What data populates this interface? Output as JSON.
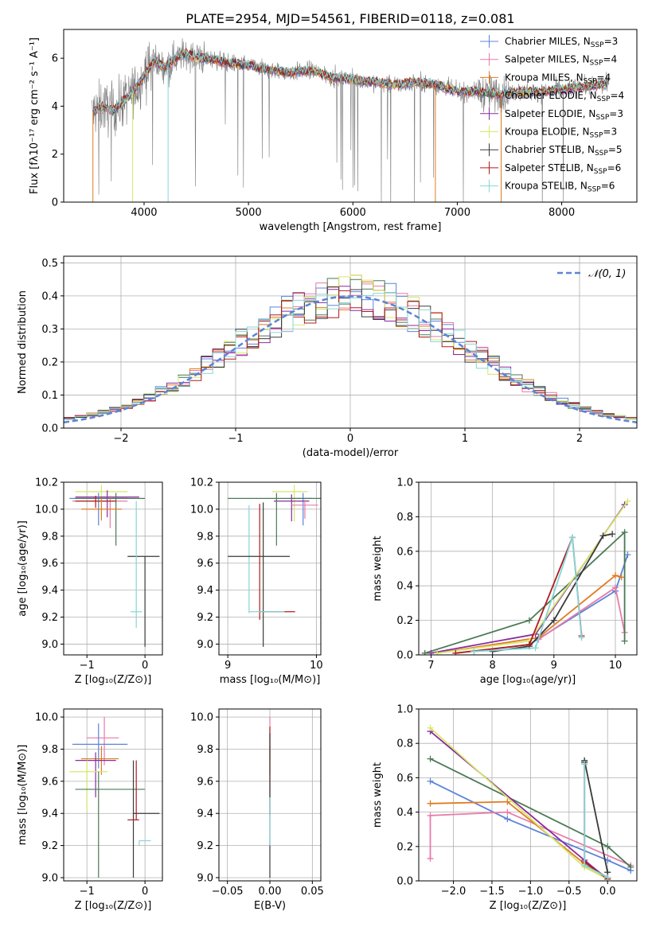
{
  "figure_title": "PLATE=2954, MJD=54561, FIBERID=0118, z=0.081",
  "colors": {
    "Chabrier MILES": "#5b84d8",
    "Salpeter MILES": "#e87aa8",
    "Kroupa MILES": "#e07b22",
    "Chabrier ELODIE": "#4a7a55",
    "Salpeter ELODIE": "#8a2aa0",
    "Kroupa ELODIE": "#d6e86a",
    "Chabrier STELIB": "#3a3a3a",
    "Salpeter STELIB": "#b01c1c",
    "Kroupa STELIB": "#86d6d8",
    "data": "#7a7a7a",
    "normal": "#5b84d8"
  },
  "chart_data": [
    {
      "type": "line",
      "id": "spectrum",
      "xlabel": "wavelength [Angstrom, rest frame]",
      "ylabel": "Flux [fλ10⁻¹⁷ erg cm⁻² s⁻¹ A⁻¹]",
      "xlim": [
        3230,
        8720
      ],
      "ylim": [
        0,
        7.2
      ],
      "xticks": [
        "4000",
        "5000",
        "6000",
        "7000",
        "8000"
      ],
      "yticks": [
        "0",
        "2",
        "4",
        "6"
      ],
      "grid": false,
      "legend_position": "right",
      "legend": [
        {
          "text": "Chabrier MILES, N",
          "sub": "SSP",
          "tail": "=3"
        },
        {
          "text": "Salpeter MILES, N",
          "sub": "SSP",
          "tail": "=4"
        },
        {
          "text": "Kroupa MILES, N",
          "sub": "SSP",
          "tail": "=4"
        },
        {
          "text": "Chabrier ELODIE, N",
          "sub": "SSP",
          "tail": "=4"
        },
        {
          "text": "Salpeter ELODIE, N",
          "sub": "SSP",
          "tail": "=3"
        },
        {
          "text": "Kroupa ELODIE, N",
          "sub": "SSP",
          "tail": "=3"
        },
        {
          "text": "Chabrier STELIB, N",
          "sub": "SSP",
          "tail": "=5"
        },
        {
          "text": "Salpeter STELIB, N",
          "sub": "SSP",
          "tail": "=6"
        },
        {
          "text": "Kroupa STELIB, N",
          "sub": "SSP",
          "tail": "=6"
        }
      ],
      "continuum": {
        "wavelength": [
          3500,
          3600,
          3700,
          3800,
          3900,
          4000,
          4100,
          4200,
          4300,
          4400,
          4500,
          4600,
          4800,
          5000,
          5200,
          5400,
          5600,
          5800,
          6000,
          6200,
          6400,
          6600,
          6800,
          7000,
          7200,
          7400,
          7600,
          7800,
          8000,
          8200,
          8400
        ],
        "flux": [
          3.7,
          4.0,
          3.8,
          4.2,
          4.6,
          5.3,
          5.9,
          5.6,
          6.0,
          6.2,
          6.0,
          6.0,
          5.8,
          5.7,
          5.5,
          5.4,
          5.5,
          5.2,
          5.1,
          5.0,
          4.9,
          5.0,
          4.9,
          4.6,
          4.6,
          4.5,
          4.6,
          4.6,
          4.7,
          4.8,
          4.9
        ]
      }
    },
    {
      "type": "line",
      "id": "residuals",
      "xlabel": "(data-model)/error",
      "ylabel": "Normed distribution",
      "xlim": [
        -2.5,
        2.5
      ],
      "ylim": [
        0,
        0.52
      ],
      "xticks": [
        "−2",
        "−1",
        "0",
        "1",
        "2"
      ],
      "yticks": [
        "0.0",
        "0.1",
        "0.2",
        "0.3",
        "0.4",
        "0.5"
      ],
      "grid": true,
      "legend": "𝒩(0, 1)",
      "legend_position": "top-right",
      "normal_mean": 0,
      "normal_sigma": 1,
      "bin_width": 0.1
    },
    {
      "type": "scatter",
      "id": "age-vs-Z",
      "xlabel": "Z [log₁₀(Z/Z⊙)]",
      "ylabel": "age  [log₁₀(age/yr)]",
      "xlim": [
        -1.4,
        0.3
      ],
      "ylim": [
        8.92,
        10.2
      ],
      "xticks": [
        "−1",
        "0"
      ],
      "yticks": [
        "9.0",
        "9.2",
        "9.4",
        "9.6",
        "9.8",
        "10.0",
        "10.2"
      ],
      "grid": true,
      "points": [
        {
          "model": "Kroupa ELODIE",
          "x": -0.75,
          "y": 10.13,
          "xerr": [
            0.45,
            0.45
          ],
          "yerr": [
            0.22,
            0.05
          ]
        },
        {
          "model": "Salpeter ELODIE",
          "x": -0.65,
          "y": 10.09,
          "xerr": [
            0.55,
            0.55
          ],
          "yerr": [
            0.15,
            0.05
          ]
        },
        {
          "model": "Chabrier MILES",
          "x": -0.8,
          "y": 10.08,
          "xerr": [
            0.5,
            0.5
          ],
          "yerr": [
            0.2,
            0.04
          ]
        },
        {
          "model": "Salpeter MILES",
          "x": -0.6,
          "y": 10.06,
          "xerr": [
            0.65,
            0.3
          ],
          "yerr": [
            0.2,
            0.04
          ]
        },
        {
          "model": "Chabrier ELODIE",
          "x": -0.5,
          "y": 10.08,
          "xerr": [
            0.7,
            0.5
          ],
          "yerr": [
            0.35,
            0.04
          ]
        },
        {
          "model": "Salpeter STELIB",
          "x": -0.85,
          "y": 10.06,
          "xerr": [
            0.35,
            0.35
          ],
          "yerr": [
            0.05,
            0.04
          ]
        },
        {
          "model": "Kroupa MILES",
          "x": -0.75,
          "y": 10.0,
          "xerr": [
            0.35,
            0.35
          ],
          "yerr": [
            0.08,
            0.08
          ]
        },
        {
          "model": "Chabrier STELIB",
          "x": 0.0,
          "y": 9.65,
          "xerr": [
            0.3,
            0.25
          ],
          "yerr": [
            0.67,
            0.0
          ]
        },
        {
          "model": "Kroupa STELIB",
          "x": -0.15,
          "y": 9.24,
          "xerr": [
            0.1,
            0.1
          ],
          "yerr": [
            0.12,
            0.82
          ]
        }
      ]
    },
    {
      "type": "scatter",
      "id": "age-vs-mass",
      "xlabel": "mass [log₁₀(M/M⊙)]",
      "ylabel": "",
      "xlim": [
        8.9,
        10.05
      ],
      "ylim": [
        8.92,
        10.2
      ],
      "xticks": [
        "9",
        "10"
      ],
      "yticks": [
        "9.0",
        "9.2",
        "9.4",
        "9.6",
        "9.8",
        "10.0",
        "10.2"
      ],
      "grid": true,
      "points": [
        {
          "model": "Kroupa ELODIE",
          "x": 9.75,
          "y": 10.13,
          "xerr": [
            0.25,
            0.15
          ],
          "yerr": [
            0.22,
            0.05
          ]
        },
        {
          "model": "Chabrier MILES",
          "x": 9.85,
          "y": 10.08,
          "xerr": [
            0.15,
            0.1
          ],
          "yerr": [
            0.2,
            0.04
          ]
        },
        {
          "model": "Salpeter ELODIE",
          "x": 9.72,
          "y": 10.06,
          "xerr": [
            0.2,
            0.2
          ],
          "yerr": [
            0.15,
            0.05
          ]
        },
        {
          "model": "Salpeter MILES",
          "x": 9.87,
          "y": 10.03,
          "xerr": [
            0.15,
            0.15
          ],
          "yerr": [
            0.1,
            0.04
          ]
        },
        {
          "model": "Chabrier ELODIE",
          "x": 9.55,
          "y": 10.08,
          "xerr": [
            0.55,
            0.5
          ],
          "yerr": [
            0.35,
            0.04
          ]
        },
        {
          "model": "Kroupa STELIB",
          "x": 9.24,
          "y": 10.03,
          "xerr": [
            0.0,
            0.0
          ],
          "yerr": [
            0.8,
            0.0
          ]
        },
        {
          "model": "Chabrier STELIB",
          "x": 9.4,
          "y": 9.65,
          "xerr": [
            0.4,
            0.3
          ],
          "yerr": [
            0.67,
            0.4
          ]
        },
        {
          "model": "Salpeter STELIB",
          "x": 9.36,
          "y": 9.24,
          "xerr": [
            0.0,
            0.4
          ],
          "yerr": [
            0.06,
            0.8
          ]
        },
        {
          "model": "Kroupa STELIB",
          "x": 9.44,
          "y": 9.24,
          "xerr": [
            0.2,
            0.2
          ],
          "yerr": [
            0.0,
            0.0
          ]
        }
      ]
    },
    {
      "type": "line",
      "id": "weight-vs-age",
      "xlabel": "age  [log₁₀(age/yr)]",
      "ylabel": "mass weight",
      "xlim": [
        6.8,
        10.35
      ],
      "ylim": [
        0,
        1.0
      ],
      "xticks": [
        "7",
        "8",
        "9",
        "10"
      ],
      "yticks": [
        "0.0",
        "0.2",
        "0.4",
        "0.6",
        "0.8",
        "1.0"
      ],
      "grid": true,
      "series": [
        {
          "model": "Chabrier MILES",
          "x": [
            7.7,
            8.6,
            10.0,
            10.2
          ],
          "y": [
            0.02,
            0.06,
            0.37,
            0.58
          ]
        },
        {
          "model": "Salpeter MILES",
          "x": [
            8.75,
            10.0,
            10.15
          ],
          "y": [
            0.09,
            0.39,
            0.13
          ]
        },
        {
          "model": "Kroupa MILES",
          "x": [
            7.1,
            8.75,
            10.0,
            10.1
          ],
          "y": [
            0.01,
            0.1,
            0.46,
            0.45
          ]
        },
        {
          "model": "Chabrier ELODIE",
          "x": [
            6.9,
            8.6,
            10.15,
            10.15
          ],
          "y": [
            0.01,
            0.2,
            0.71,
            0.08
          ]
        },
        {
          "model": "Salpeter ELODIE",
          "x": [
            7.0,
            8.7,
            10.15
          ],
          "y": [
            0.01,
            0.12,
            0.87
          ]
        },
        {
          "model": "Kroupa ELODIE",
          "x": [
            7.1,
            8.6,
            10.2
          ],
          "y": [
            0.01,
            0.08,
            0.89
          ]
        },
        {
          "model": "Chabrier STELIB",
          "x": [
            8.0,
            8.6,
            9.0,
            9.8,
            9.95
          ],
          "y": [
            0.02,
            0.05,
            0.2,
            0.69,
            0.7
          ]
        },
        {
          "model": "Salpeter STELIB",
          "x": [
            7.4,
            8.6,
            9.3,
            9.45
          ],
          "y": [
            0.01,
            0.06,
            0.68,
            0.11
          ]
        },
        {
          "model": "Kroupa STELIB",
          "x": [
            7.7,
            8.7,
            9.3,
            9.45
          ],
          "y": [
            0.02,
            0.04,
            0.68,
            0.1
          ]
        }
      ]
    },
    {
      "type": "scatter",
      "id": "mass-vs-Z",
      "xlabel": "Z [log₁₀(Z/Z⊙)]",
      "ylabel": "mass [log₁₀(M/M⊙)]",
      "xlim": [
        -1.4,
        0.3
      ],
      "ylim": [
        8.98,
        10.05
      ],
      "xticks": [
        "−1",
        "0"
      ],
      "yticks": [
        "9.0",
        "9.2",
        "9.4",
        "9.6",
        "9.8",
        "10.0"
      ],
      "grid": true,
      "points": [
        {
          "model": "Salpeter MILES",
          "x": -0.7,
          "y": 9.87,
          "xerr": [
            0.3,
            0.25
          ],
          "yerr": [
            0.17,
            0.13
          ]
        },
        {
          "model": "Chabrier MILES",
          "x": -0.8,
          "y": 9.83,
          "xerr": [
            0.45,
            0.5
          ],
          "yerr": [
            0.15,
            0.13
          ]
        },
        {
          "model": "Kroupa MILES",
          "x": -0.75,
          "y": 9.74,
          "xerr": [
            0.35,
            0.3
          ],
          "yerr": [
            0.1,
            0.08
          ]
        },
        {
          "model": "Salpeter ELODIE",
          "x": -0.85,
          "y": 9.73,
          "xerr": [
            0.35,
            0.35
          ],
          "yerr": [
            0.23,
            0.05
          ]
        },
        {
          "model": "Kroupa ELODIE",
          "x": -1.0,
          "y": 9.66,
          "xerr": [
            0.3,
            0.35
          ],
          "yerr": [
            0.25,
            0.07
          ]
        },
        {
          "model": "Chabrier ELODIE",
          "x": -0.8,
          "y": 9.55,
          "xerr": [
            0.4,
            0.8
          ],
          "yerr": [
            0.55,
            0.11
          ]
        },
        {
          "model": "Chabrier STELIB",
          "x": -0.2,
          "y": 9.4,
          "xerr": [
            0.0,
            0.45
          ],
          "yerr": [
            0.4,
            0.33
          ]
        },
        {
          "model": "Salpeter STELIB",
          "x": -0.15,
          "y": 9.36,
          "xerr": [
            0.15,
            0.05
          ],
          "yerr": [
            0.0,
            0.37
          ]
        },
        {
          "model": "Kroupa STELIB",
          "x": -0.1,
          "y": 9.23,
          "xerr": [
            0.0,
            0.2
          ],
          "yerr": [
            0.03,
            0.0
          ]
        }
      ]
    },
    {
      "type": "scatter",
      "id": "mass-vs-EBV",
      "xlabel": "E(B-V)",
      "ylabel": "",
      "xlim": [
        -0.06,
        0.06
      ],
      "ylim": [
        8.98,
        10.05
      ],
      "xticks": [
        "−0.05",
        "0.00",
        "0.05"
      ],
      "yticks": [
        "9.0",
        "9.2",
        "9.4",
        "9.6",
        "9.8",
        "10.0"
      ],
      "grid": true,
      "points": [
        {
          "model": "Salpeter MILES",
          "x": 0.0,
          "y": 9.87,
          "xerr": [
            0,
            0
          ],
          "yerr": [
            0.13,
            0.13
          ]
        },
        {
          "model": "Kroupa MILES",
          "x": 0.0,
          "y": 9.74,
          "xerr": [
            0,
            0
          ],
          "yerr": [
            0.1,
            0.08
          ]
        },
        {
          "model": "Salpeter STELIB",
          "x": 0.0,
          "y": 9.69,
          "xerr": [
            0,
            0
          ],
          "yerr": [
            0.3,
            0.25
          ]
        },
        {
          "model": "Chabrier STELIB",
          "x": 0.0,
          "y": 9.5,
          "xerr": [
            0,
            0
          ],
          "yerr": [
            0.5,
            0.4
          ]
        },
        {
          "model": "Kroupa STELIB",
          "x": 0.0,
          "y": 9.3,
          "xerr": [
            0,
            0
          ],
          "yerr": [
            0.1,
            0.2
          ]
        }
      ]
    },
    {
      "type": "line",
      "id": "weight-vs-Z",
      "xlabel": "Z [log₁₀(Z/Z⊙)]",
      "ylabel": "mass weight",
      "xlim": [
        -2.45,
        0.38
      ],
      "ylim": [
        0,
        1.0
      ],
      "xticks": [
        "−2.0",
        "−1.5",
        "−1.0",
        "−0.5",
        "0.0"
      ],
      "yticks": [
        "0.0",
        "0.2",
        "0.4",
        "0.6",
        "0.8",
        "1.0"
      ],
      "grid": true,
      "series": [
        {
          "model": "Chabrier MILES",
          "x": [
            -2.3,
            -1.3,
            0.0,
            0.3
          ],
          "y": [
            0.58,
            0.36,
            0.12,
            0.06
          ]
        },
        {
          "model": "Salpeter MILES",
          "x": [
            -2.3,
            -2.3,
            -1.3,
            0.3
          ],
          "y": [
            0.13,
            0.38,
            0.4,
            0.09
          ]
        },
        {
          "model": "Kroupa MILES",
          "x": [
            -2.3,
            -1.3,
            -0.3,
            0.0
          ],
          "y": [
            0.45,
            0.46,
            0.1,
            0.02
          ]
        },
        {
          "model": "Chabrier ELODIE",
          "x": [
            -2.3,
            0.0,
            0.3
          ],
          "y": [
            0.71,
            0.2,
            0.08
          ]
        },
        {
          "model": "Salpeter ELODIE",
          "x": [
            -2.3,
            -0.3,
            0.0
          ],
          "y": [
            0.87,
            0.12,
            0.01
          ]
        },
        {
          "model": "Kroupa ELODIE",
          "x": [
            -2.3,
            -0.3,
            0.0
          ],
          "y": [
            0.89,
            0.08,
            0.01
          ]
        },
        {
          "model": "Chabrier STELIB",
          "x": [
            -0.3,
            -0.3,
            0.0,
            0.0
          ],
          "y": [
            0.69,
            0.7,
            0.05,
            0.02
          ]
        },
        {
          "model": "Salpeter STELIB",
          "x": [
            -0.3,
            -0.3,
            0.0
          ],
          "y": [
            0.68,
            0.11,
            0.01
          ]
        },
        {
          "model": "Kroupa STELIB",
          "x": [
            -0.3,
            -0.3,
            0.0
          ],
          "y": [
            0.68,
            0.09,
            0.02
          ]
        }
      ]
    }
  ]
}
